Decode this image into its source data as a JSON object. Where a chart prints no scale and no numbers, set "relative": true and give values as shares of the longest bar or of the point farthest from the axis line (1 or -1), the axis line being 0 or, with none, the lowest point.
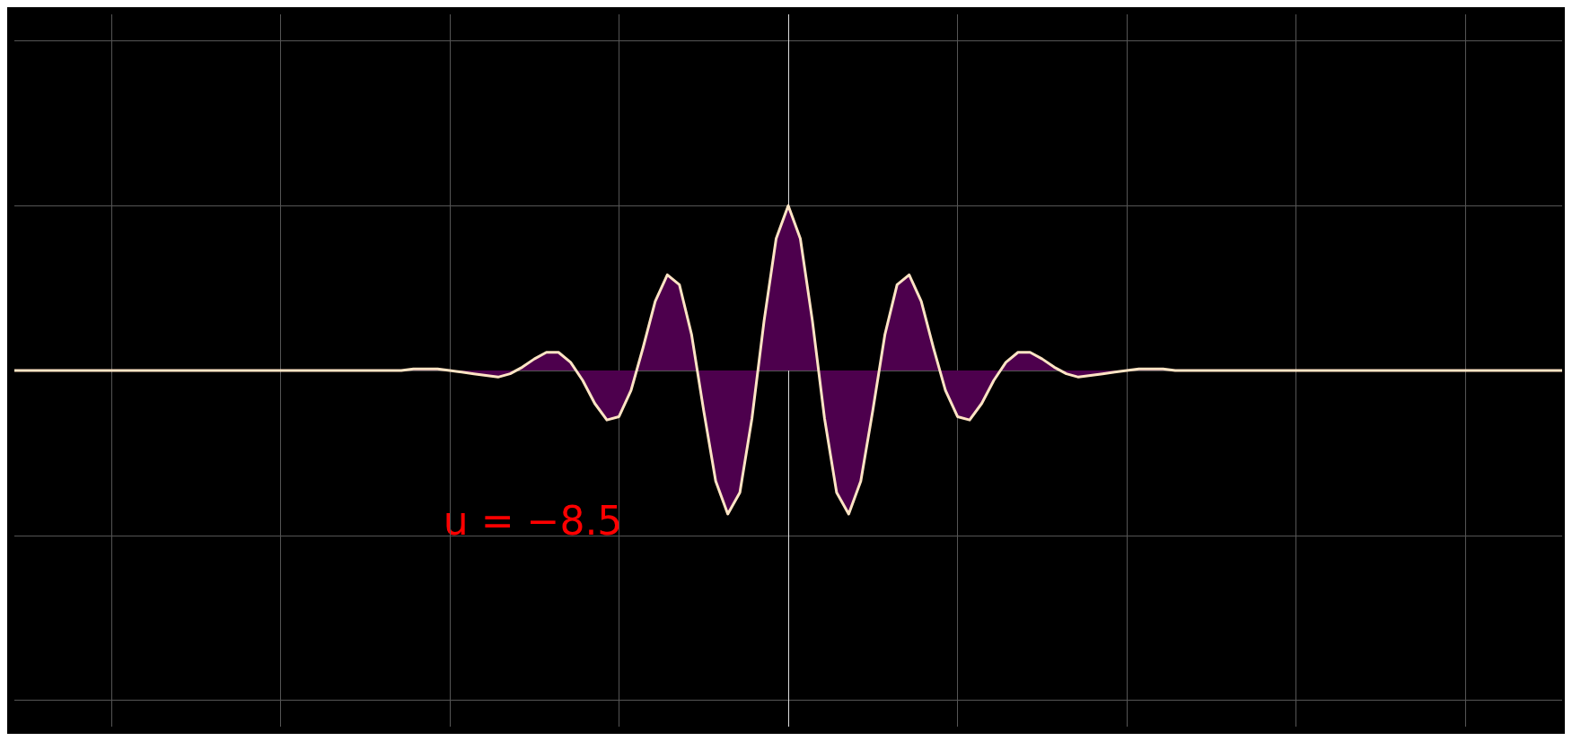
{
  "chart_data": {
    "type": "area",
    "relative": true,
    "grid": true,
    "marker": "none",
    "categories": [
      null,
      null,
      null,
      null,
      null,
      null,
      null,
      null,
      null,
      null,
      null,
      null,
      null,
      null,
      null,
      null,
      null,
      null,
      null,
      null,
      null,
      null,
      null,
      null,
      null,
      null,
      null,
      null,
      null,
      null,
      null,
      null,
      null,
      null,
      null,
      null,
      null,
      null,
      null,
      null,
      null,
      null,
      null,
      null,
      null,
      null,
      null,
      null,
      null,
      null,
      null,
      null,
      null,
      null,
      null,
      null,
      null,
      null,
      null,
      null,
      null,
      null,
      null,
      null,
      null,
      null,
      null,
      null,
      null,
      null,
      null,
      null,
      null,
      null,
      null,
      null,
      null,
      null,
      null,
      null,
      null,
      null,
      null,
      null,
      null,
      null,
      null,
      null,
      null,
      null,
      null,
      null,
      null,
      null,
      null,
      null,
      null,
      null,
      null,
      null,
      null,
      null,
      null,
      null,
      null,
      null,
      null,
      null,
      null,
      null,
      null,
      null,
      null,
      null,
      null,
      null,
      null,
      null,
      null,
      null,
      null,
      null,
      null,
      null,
      null,
      null,
      null,
      null,
      null
    ],
    "series": [
      {
        "color": "#4d004d",
        "values": [
          0,
          0,
          0,
          0,
          0,
          0,
          0,
          0,
          0,
          0,
          0,
          0,
          0,
          0,
          0,
          0,
          0,
          0,
          0,
          0,
          0,
          0,
          0,
          0,
          0,
          0,
          0,
          0,
          0,
          0,
          0,
          0,
          0,
          0.01,
          0.01,
          0.01,
          0,
          -0.01,
          -0.02,
          -0.03,
          -0.04,
          -0.02,
          0.02,
          0.07,
          0.11,
          0.11,
          0.05,
          -0.06,
          -0.2,
          -0.3,
          -0.28,
          -0.12,
          0.14,
          0.42,
          0.58,
          0.52,
          0.22,
          -0.24,
          -0.67,
          -0.87,
          -0.74,
          -0.29,
          0.3,
          0.8,
          1,
          0.8,
          0.3,
          -0.29,
          -0.74,
          -0.87,
          -0.67,
          -0.24,
          0.22,
          0.52,
          0.58,
          0.42,
          0.14,
          -0.12,
          -0.28,
          -0.3,
          -0.2,
          -0.06,
          0.05,
          0.11,
          0.11,
          0.07,
          0.02,
          -0.02,
          -0.04,
          -0.03,
          -0.02,
          -0.01,
          0,
          0.01,
          0.01,
          0.01,
          0,
          0,
          0,
          0,
          0,
          0,
          0,
          0,
          0,
          0,
          0,
          0,
          0,
          0,
          0,
          0,
          0,
          0,
          0,
          0,
          0,
          0,
          0,
          0,
          0,
          0,
          0,
          0,
          0,
          0,
          0,
          0,
          0
        ]
      }
    ],
    "annotations": [
      "u = −8.5"
    ]
  }
}
